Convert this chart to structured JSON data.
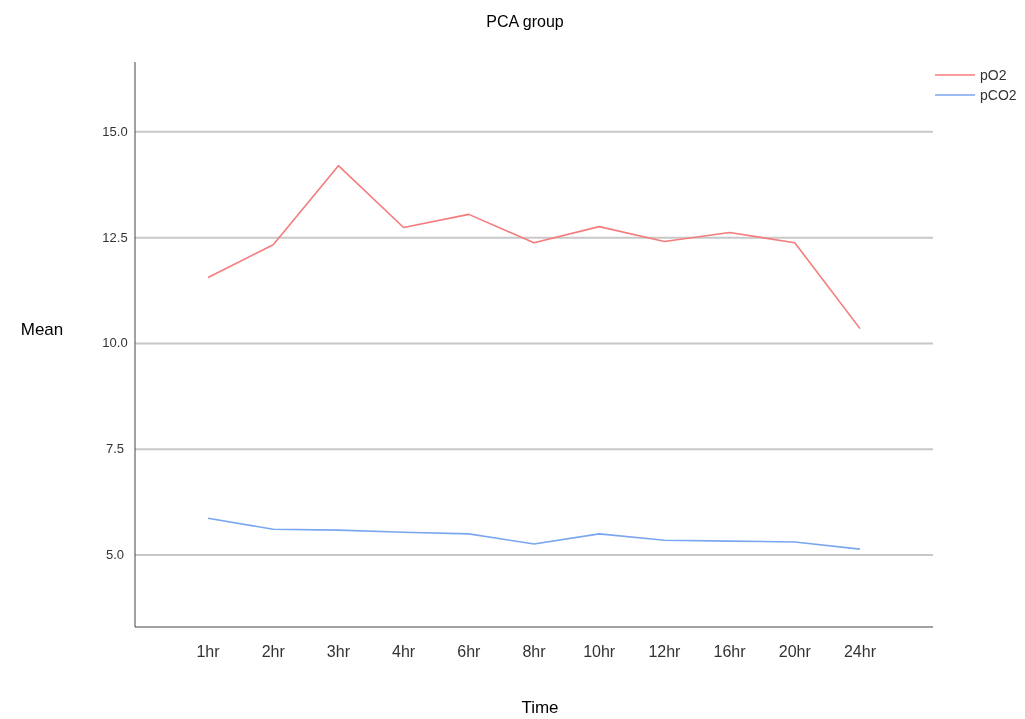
{
  "chart_data": {
    "type": "line",
    "title": "PCA group",
    "xlabel": "Time",
    "ylabel": "Mean",
    "categories": [
      "1hr",
      "2hr",
      "3hr",
      "4hr",
      "6hr",
      "8hr",
      "10hr",
      "12hr",
      "16hr",
      "20hr",
      "24hr"
    ],
    "series": [
      {
        "name": "pO2",
        "color": "#f47c7c",
        "values": [
          11.56,
          12.33,
          14.2,
          12.74,
          13.05,
          12.38,
          12.76,
          12.41,
          12.62,
          12.38,
          10.35
        ]
      },
      {
        "name": "pCO2",
        "color": "#7aa6f0",
        "values": [
          5.87,
          5.61,
          5.59,
          5.54,
          5.5,
          5.26,
          5.5,
          5.35,
          5.33,
          5.31,
          5.14
        ]
      }
    ],
    "ylim": [
      3.3,
      16.65
    ],
    "yticks": [
      {
        "value": 5,
        "label": "5.0"
      },
      {
        "value": 7.5,
        "label": "7.5"
      },
      {
        "value": 10,
        "label": "10.0"
      },
      {
        "value": 12.5,
        "label": "12.5"
      },
      {
        "value": 15,
        "label": "15.0"
      }
    ],
    "grid": "y",
    "legend": "top right",
    "marker": "none",
    "line_style": "solid"
  }
}
